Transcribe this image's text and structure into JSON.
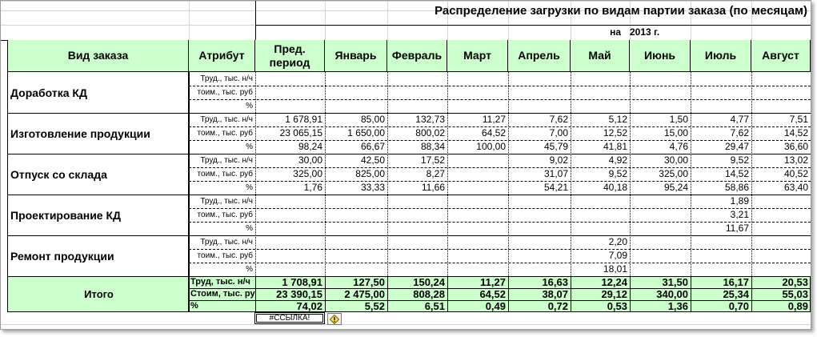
{
  "title": "Распределение загрузки по видам партии заказа (по месяцам)",
  "date_label": "на",
  "year_label": "2013 г.",
  "headers": {
    "order_type": "Вид заказа",
    "attribute": "Атрибут",
    "months": [
      "Пред. период",
      "Январь",
      "Февраль",
      "Март",
      "Апрель",
      "Май",
      "Июнь",
      "Июль",
      "Август"
    ]
  },
  "attr_labels": [
    "Труд., тыс. н/ч",
    "тоим., тыс. руб",
    "%"
  ],
  "groups": [
    {
      "name": "Доработка КД",
      "rows": [
        [
          "",
          "",
          "",
          "",
          "",
          "",
          "",
          "",
          ""
        ],
        [
          "",
          "",
          "",
          "",
          "",
          "",
          "",
          "",
          ""
        ],
        [
          "",
          "",
          "",
          "",
          "",
          "",
          "",
          "",
          ""
        ]
      ]
    },
    {
      "name": "Изготовление продукции",
      "rows": [
        [
          "1 678,91",
          "85,00",
          "132,73",
          "11,27",
          "7,62",
          "5,12",
          "1,50",
          "4,77",
          "7,51"
        ],
        [
          "23 065,15",
          "1 650,00",
          "800,02",
          "64,52",
          "7,00",
          "12,52",
          "15,00",
          "7,62",
          "14,52"
        ],
        [
          "98,24",
          "66,67",
          "88,34",
          "100,00",
          "45,79",
          "41,81",
          "4,76",
          "29,47",
          "36,60"
        ]
      ]
    },
    {
      "name": "Отпуск со склада",
      "rows": [
        [
          "30,00",
          "42,50",
          "17,52",
          "",
          "9,02",
          "4,92",
          "30,00",
          "9,52",
          "13,02"
        ],
        [
          "325,00",
          "825,00",
          "8,27",
          "",
          "31,07",
          "9,52",
          "325,00",
          "14,52",
          "40,52"
        ],
        [
          "1,76",
          "33,33",
          "11,66",
          "",
          "54,21",
          "40,18",
          "95,24",
          "58,86",
          "63,40"
        ]
      ]
    },
    {
      "name": "Проектирование КД",
      "rows": [
        [
          "",
          "",
          "",
          "",
          "",
          "",
          "",
          "1,89",
          ""
        ],
        [
          "",
          "",
          "",
          "",
          "",
          "",
          "",
          "3,21",
          ""
        ],
        [
          "",
          "",
          "",
          "",
          "",
          "",
          "",
          "11,67",
          ""
        ]
      ]
    },
    {
      "name": "Ремонт продукции",
      "rows": [
        [
          "",
          "",
          "",
          "",
          "",
          "2,20",
          "",
          "",
          ""
        ],
        [
          "",
          "",
          "",
          "",
          "",
          "7,09",
          "",
          "",
          ""
        ],
        [
          "",
          "",
          "",
          "",
          "",
          "18,01",
          "",
          "",
          ""
        ]
      ]
    }
  ],
  "totals": {
    "label": "Итого",
    "attrs": [
      "Труд, тыс. н/ч",
      "Стоим, тыс. руб",
      "%"
    ],
    "rows": [
      [
        "1 708,91",
        "127,50",
        "150,24",
        "11,27",
        "16,63",
        "12,24",
        "31,50",
        "16,17",
        "20,53"
      ],
      [
        "23 390,15",
        "2 475,00",
        "808,28",
        "64,52",
        "38,07",
        "29,12",
        "340,00",
        "25,34",
        "55,03"
      ],
      [
        "74,02",
        "5,52",
        "6,51",
        "0,49",
        "0,72",
        "0,53",
        "1,36",
        "0,70",
        "0,89"
      ]
    ]
  },
  "error_cell": "#ССЫЛКА!",
  "error_icon": "error-diamond-icon",
  "colors": {
    "header_bg": "#ccffcc",
    "total_bg": "#ccffcc"
  }
}
